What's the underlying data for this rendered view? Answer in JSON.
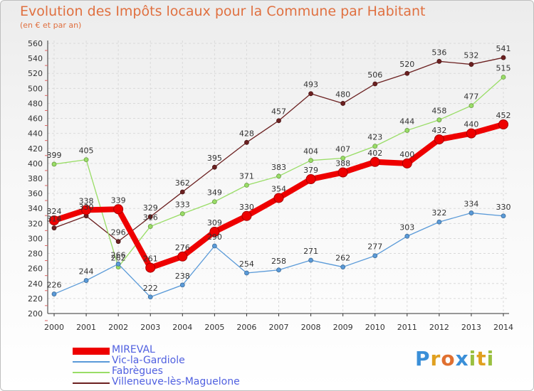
{
  "header": {
    "title": "Evolution des Impôts locaux pour la Commune par Habitant",
    "subtitle": "(en € et par an)"
  },
  "logo": {
    "text": "Proxiti",
    "letters": [
      {
        "ch": "P",
        "color": "#3a8fd8"
      },
      {
        "ch": "r",
        "color": "#e0a020"
      },
      {
        "ch": "o",
        "color": "#e07030"
      },
      {
        "ch": "x",
        "color": "#3a8fd8"
      },
      {
        "ch": "i",
        "color": "#9ac040"
      },
      {
        "ch": "t",
        "color": "#e0a020"
      },
      {
        "ch": "i",
        "color": "#9ac040"
      }
    ]
  },
  "chart_data": {
    "type": "line",
    "title": "Evolution des Impôts locaux pour la Commune par Habitant",
    "subtitle": "(en € et par an)",
    "xlabel": "",
    "ylabel": "",
    "x": [
      2000,
      2001,
      2002,
      2003,
      2004,
      2005,
      2006,
      2007,
      2008,
      2009,
      2010,
      2011,
      2012,
      2013,
      2014
    ],
    "ylim": [
      200,
      560
    ],
    "yticks": [
      200,
      220,
      240,
      260,
      280,
      300,
      320,
      340,
      360,
      380,
      400,
      420,
      440,
      460,
      480,
      500,
      520,
      540,
      560
    ],
    "grid": true,
    "legend_position": "bottom-left",
    "series": [
      {
        "name": "Villeneuve-lès-Maguelone",
        "color": "#6b2020",
        "emphasis": false,
        "values": [
          314,
          330,
          296,
          329,
          362,
          395,
          428,
          457,
          493,
          480,
          506,
          520,
          536,
          532,
          541
        ]
      },
      {
        "name": "Fabrègues",
        "color": "#99dd66",
        "emphasis": false,
        "values": [
          399,
          405,
          262,
          316,
          333,
          349,
          371,
          383,
          404,
          407,
          423,
          444,
          458,
          477,
          515
        ]
      },
      {
        "name": "Vic-la-Gardiole",
        "color": "#5a9ad8",
        "emphasis": false,
        "values": [
          226,
          244,
          266,
          222,
          238,
          290,
          254,
          258,
          271,
          262,
          277,
          303,
          322,
          334,
          330
        ]
      },
      {
        "name": "MIREVAL",
        "color": "#ee0000",
        "emphasis": true,
        "values": [
          324,
          338,
          339,
          261,
          276,
          309,
          330,
          354,
          379,
          388,
          402,
          400,
          432,
          440,
          452
        ]
      }
    ],
    "legend_order": [
      "MIREVAL",
      "Vic-la-Gardiole",
      "Fabrègues",
      "Villeneuve-lès-Maguelone"
    ]
  }
}
